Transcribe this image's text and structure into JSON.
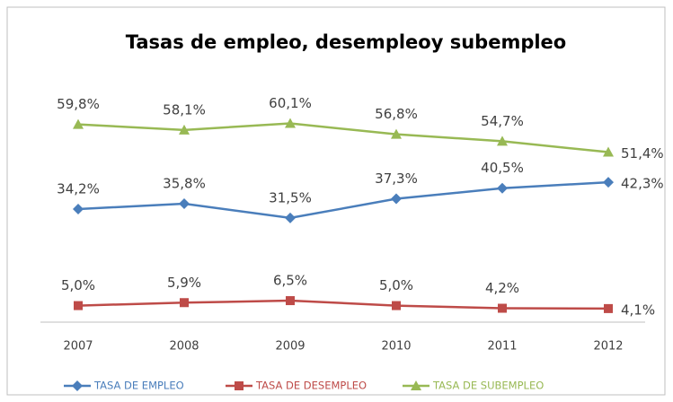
{
  "chart_data": {
    "type": "line",
    "title": "Tasas de empleo, desempleoy subempleo",
    "categories": [
      "2007",
      "2008",
      "2009",
      "2010",
      "2011",
      "2012"
    ],
    "ylim": [
      0,
      70
    ],
    "series": [
      {
        "name": "TASA DE EMPLEO",
        "color": "#4a7ebb",
        "marker": "diamond",
        "values": [
          34.2,
          35.8,
          31.5,
          37.3,
          40.5,
          42.3
        ],
        "value_labels": [
          "34,2%",
          "35,8%",
          "31,5%",
          "37,3%",
          "40,5%",
          "42,3%"
        ]
      },
      {
        "name": "TASA DE DESEMPLEO",
        "color": "#be4b48",
        "marker": "square",
        "values": [
          5.0,
          5.9,
          6.5,
          5.0,
          4.2,
          4.1
        ],
        "value_labels": [
          "5,0%",
          "5,9%",
          "6,5%",
          "5,0%",
          "4,2%",
          "4,1%"
        ]
      },
      {
        "name": "TASA DE SUBEMPLEO",
        "color": "#98b954",
        "marker": "triangle",
        "values": [
          59.8,
          58.1,
          60.1,
          56.8,
          54.7,
          51.4
        ],
        "value_labels": [
          "59,8%",
          "58,1%",
          "60,1%",
          "56,8%",
          "54,7%",
          "51,4%"
        ]
      }
    ]
  }
}
